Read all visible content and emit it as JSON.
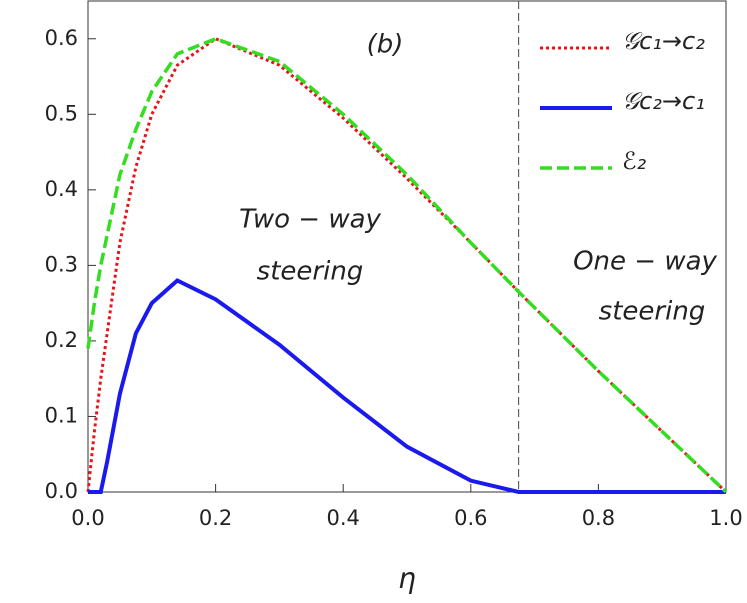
{
  "chart_data": {
    "type": "line",
    "x_label": "η",
    "x": [
      0,
      0.01,
      0.02,
      0.03,
      0.05,
      0.075,
      0.1,
      0.14,
      0.2,
      0.3,
      0.4,
      0.5,
      0.6,
      0.675,
      0.8,
      0.9,
      1.0
    ],
    "series": [
      {
        "name": "𝒢c₁→c₂",
        "color": "#e8141a",
        "style": "dotted",
        "values": [
          0,
          0.08,
          0.15,
          0.21,
          0.33,
          0.43,
          0.5,
          0.565,
          0.6,
          0.565,
          0.495,
          0.415,
          0.33,
          0.265,
          0.16,
          0.08,
          0
        ]
      },
      {
        "name": "𝒢c₂→c₁",
        "color": "#1a1aee",
        "style": "solid",
        "values": [
          0,
          0,
          0,
          0.04,
          0.13,
          0.21,
          0.25,
          0.28,
          0.255,
          0.195,
          0.125,
          0.06,
          0.015,
          0,
          0,
          0,
          0
        ]
      },
      {
        "name": "ℰ₂",
        "color": "#33dd1f",
        "style": "dashed",
        "values": [
          0.19,
          0.25,
          0.3,
          0.34,
          0.42,
          0.48,
          0.53,
          0.58,
          0.6,
          0.57,
          0.5,
          0.42,
          0.33,
          0.265,
          0.16,
          0.08,
          0
        ]
      }
    ],
    "xlim": [
      0,
      1
    ],
    "ylim": [
      0,
      0.65
    ],
    "xticks": [
      {
        "value": 0,
        "label": "0.0"
      },
      0.2,
      0.4,
      0.6,
      0.8,
      {
        "value": 1,
        "label": "1.0"
      }
    ],
    "yticks": [
      {
        "value": 0,
        "label": "0.0"
      },
      0.1,
      0.2,
      0.3,
      0.4,
      0.5,
      0.6
    ],
    "vline_x": 0.675,
    "annotations": [
      "(b)",
      "Two − way",
      "steering",
      "One − way",
      "steering"
    ],
    "legend": "upper right"
  }
}
